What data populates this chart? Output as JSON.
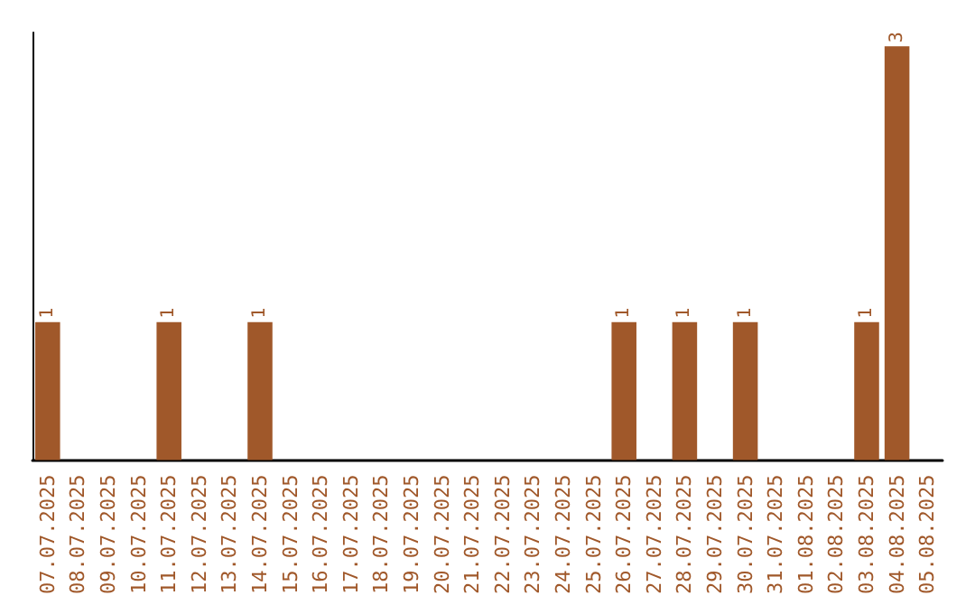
{
  "chart_data": {
    "type": "bar",
    "categories": [
      "07.07.2025",
      "08.07.2025",
      "09.07.2025",
      "10.07.2025",
      "11.07.2025",
      "12.07.2025",
      "13.07.2025",
      "14.07.2025",
      "15.07.2025",
      "16.07.2025",
      "17.07.2025",
      "18.07.2025",
      "19.07.2025",
      "20.07.2025",
      "21.07.2025",
      "22.07.2025",
      "23.07.2025",
      "24.07.2025",
      "25.07.2025",
      "26.07.2025",
      "27.07.2025",
      "28.07.2025",
      "29.07.2025",
      "30.07.2025",
      "31.07.2025",
      "01.08.2025",
      "02.08.2025",
      "03.08.2025",
      "04.08.2025",
      "05.08.2025"
    ],
    "values": [
      1,
      0,
      0,
      0,
      1,
      0,
      0,
      1,
      0,
      0,
      0,
      0,
      0,
      0,
      0,
      0,
      0,
      0,
      0,
      1,
      0,
      1,
      0,
      1,
      0,
      0,
      0,
      1,
      3,
      0
    ],
    "value_labels": [
      "1",
      null,
      null,
      null,
      "1",
      null,
      null,
      "1",
      null,
      null,
      null,
      null,
      null,
      null,
      null,
      null,
      null,
      null,
      null,
      "1",
      null,
      "1",
      null,
      "1",
      null,
      null,
      null,
      "1",
      "3",
      null
    ],
    "color": "#a0582a",
    "ylim": [
      0,
      3.1
    ],
    "tick_labels": "x",
    "grid": false
  }
}
